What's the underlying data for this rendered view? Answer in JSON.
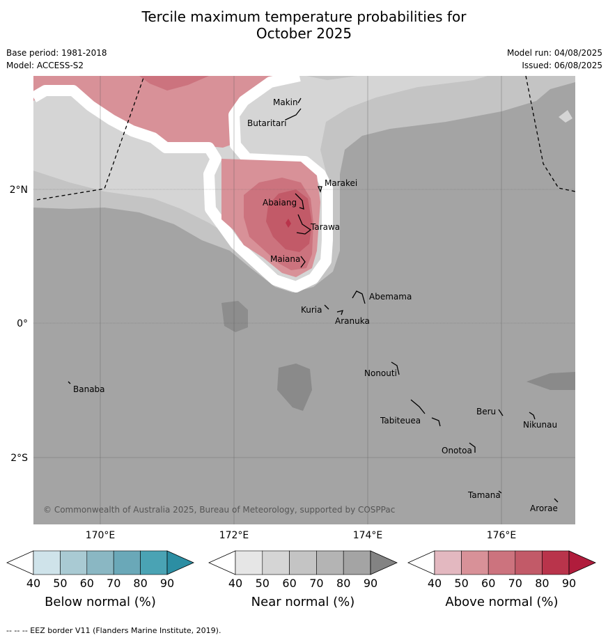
{
  "title_line1": "Tercile maximum temperature probabilities for",
  "title_line2": "October 2025",
  "meta": {
    "base_period": "Base period: 1981-2018",
    "model": "Model: ACCESS-S2",
    "model_run": "Model run: 04/08/2025",
    "issued": "Issued: 06/08/2025"
  },
  "axes": {
    "lat_labels": [
      "2°N",
      "0°",
      "2°S"
    ],
    "lon_labels": [
      "170°E",
      "172°E",
      "174°E",
      "176°E"
    ]
  },
  "places": [
    {
      "name": "Makin"
    },
    {
      "name": "Butaritari"
    },
    {
      "name": "Marakei"
    },
    {
      "name": "Abaiang"
    },
    {
      "name": "Tarawa"
    },
    {
      "name": "Maiana"
    },
    {
      "name": "Abemama"
    },
    {
      "name": "Kuria"
    },
    {
      "name": "Aranuka"
    },
    {
      "name": "Nonouti"
    },
    {
      "name": "Banaba"
    },
    {
      "name": "Beru"
    },
    {
      "name": "Tabiteuea"
    },
    {
      "name": "Nikunau"
    },
    {
      "name": "Onotoa"
    },
    {
      "name": "Tamana"
    },
    {
      "name": "Arorae"
    }
  ],
  "copyright": "© Commonwealth of Australia 2025, Bureau of Meteorology, supported by COSPPac",
  "colorbars": [
    {
      "label": "Below normal (%)",
      "ticks": [
        "40",
        "50",
        "60",
        "70",
        "80",
        "90"
      ],
      "colors": [
        "#ffffff",
        "#cfe3ea",
        "#a9cad3",
        "#8ab7c3",
        "#6aa8b8",
        "#4aa3b4",
        "#2c8ea3"
      ]
    },
    {
      "label": "Near normal (%)",
      "ticks": [
        "40",
        "50",
        "60",
        "70",
        "80",
        "90"
      ],
      "colors": [
        "#ffffff",
        "#e6e6e6",
        "#d5d5d5",
        "#c4c4c4",
        "#b4b4b4",
        "#a4a4a4",
        "#838383"
      ]
    },
    {
      "label": "Above normal (%)",
      "ticks": [
        "40",
        "50",
        "60",
        "70",
        "80",
        "90"
      ],
      "colors": [
        "#ffffff",
        "#e3b8c0",
        "#d89198",
        "#cc737e",
        "#c25a68",
        "#b9344b",
        "#b01c3c"
      ]
    }
  ],
  "footer": "--  --  -- EEZ border V11 (Flanders Marine Institute, 2019)."
}
